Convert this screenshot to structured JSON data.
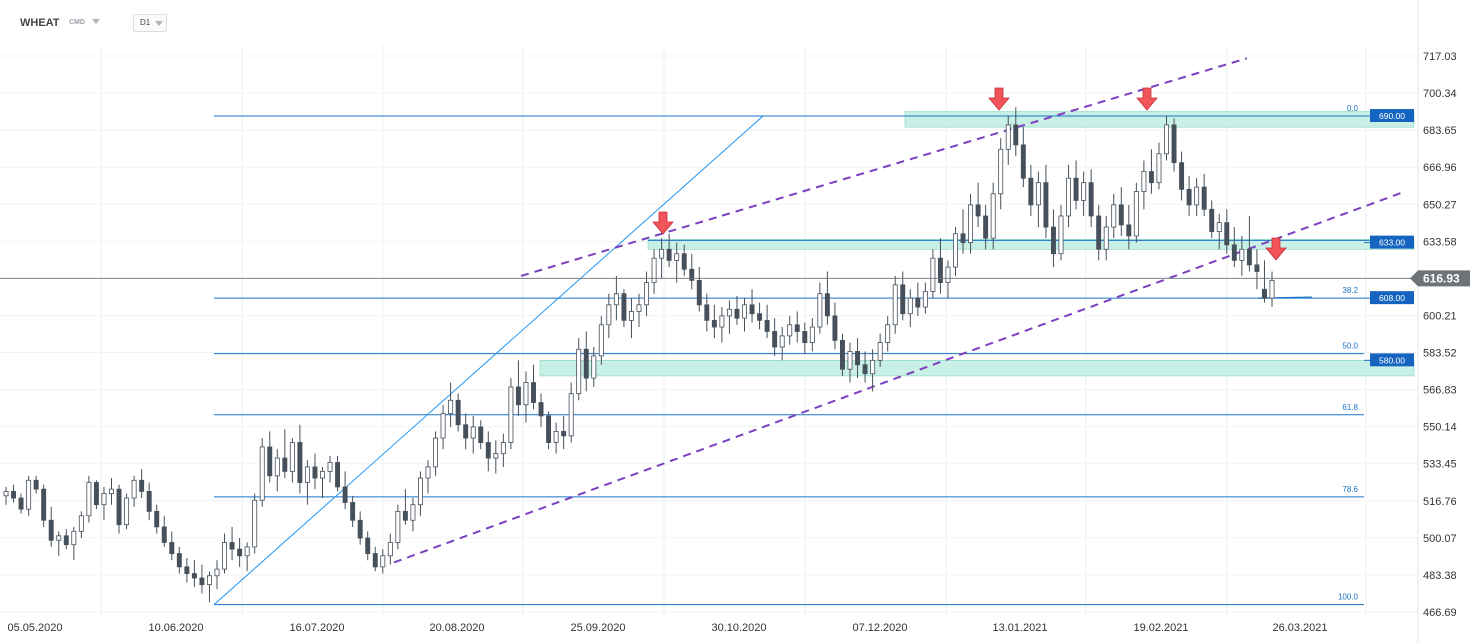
{
  "header": {
    "symbol": "WHEAT",
    "instrument_type": "CMD",
    "timeframe": "D1"
  },
  "chart_data": {
    "type": "candlestick",
    "x_ticks": [
      "05.05.2020",
      "10.06.2020",
      "16.07.2020",
      "20.08.2020",
      "25.09.2020",
      "30.10.2020",
      "07.12.2020",
      "13.01.2021",
      "19.02.2021",
      "26.03.2021"
    ],
    "y_ticks": [
      717.03,
      700.34,
      683.65,
      666.96,
      650.27,
      633.58,
      616.89,
      600.21,
      583.52,
      566.83,
      550.14,
      533.45,
      516.76,
      500.07,
      483.38,
      466.69
    ],
    "ylim": [
      466.69,
      717.03
    ],
    "current_price": "616.93",
    "price_levels": [
      {
        "label": "690.00",
        "value": 690.0
      },
      {
        "label": "633.00",
        "value": 633.0
      },
      {
        "label": "608.00",
        "value": 608.0
      },
      {
        "label": "580.00",
        "value": 580.0
      }
    ],
    "fibonacci": [
      {
        "label": "0.0",
        "value": 690.0
      },
      {
        "label": "38.2",
        "value": 608.0
      },
      {
        "label": "50.0",
        "value": 583.0
      },
      {
        "label": "61.8",
        "value": 555.5
      },
      {
        "label": "78.6",
        "value": 518.5
      },
      {
        "label": "100.0",
        "value": 470.0
      }
    ],
    "colors": {
      "bull": "#ffffff",
      "bear": "#46505a",
      "wick": "#46505a",
      "level_line": "#1a73c8",
      "label_bg": "#1565c0",
      "zone": "#c9f0e6",
      "channel": "#7b3fbf",
      "arrow": "#f2545b",
      "current": "#6d7378"
    },
    "candles": [
      [
        519,
        523,
        515,
        521
      ],
      [
        521,
        524,
        516,
        518
      ],
      [
        518,
        520,
        511,
        513
      ],
      [
        513,
        528,
        510,
        526
      ],
      [
        526,
        528,
        520,
        522
      ],
      [
        522,
        524,
        505,
        508
      ],
      [
        508,
        514,
        496,
        499
      ],
      [
        499,
        503,
        492,
        501
      ],
      [
        501,
        504,
        495,
        497
      ],
      [
        497,
        505,
        490,
        503
      ],
      [
        503,
        512,
        500,
        510
      ],
      [
        510,
        528,
        507,
        525
      ],
      [
        525,
        526,
        513,
        515
      ],
      [
        515,
        523,
        508,
        520
      ],
      [
        520,
        527,
        515,
        522
      ],
      [
        522,
        524,
        502,
        506
      ],
      [
        506,
        520,
        504,
        518
      ],
      [
        518,
        528,
        514,
        526
      ],
      [
        526,
        531,
        518,
        521
      ],
      [
        521,
        525,
        508,
        512
      ],
      [
        512,
        515,
        502,
        505
      ],
      [
        505,
        510,
        496,
        498
      ],
      [
        498,
        503,
        490,
        493
      ],
      [
        493,
        496,
        484,
        487
      ],
      [
        487,
        491,
        480,
        484
      ],
      [
        484,
        490,
        478,
        482
      ],
      [
        482,
        488,
        475,
        479
      ],
      [
        479,
        485,
        471,
        483
      ],
      [
        483,
        490,
        477,
        486
      ],
      [
        486,
        502,
        484,
        498
      ],
      [
        498,
        505,
        490,
        495
      ],
      [
        495,
        500,
        487,
        492
      ],
      [
        492,
        498,
        485,
        496
      ],
      [
        496,
        520,
        493,
        517
      ],
      [
        517,
        545,
        514,
        541
      ],
      [
        541,
        548,
        525,
        528
      ],
      [
        528,
        540,
        521,
        536
      ],
      [
        536,
        549,
        527,
        530
      ],
      [
        530,
        545,
        525,
        543
      ],
      [
        543,
        551,
        520,
        525
      ],
      [
        525,
        535,
        515,
        532
      ],
      [
        532,
        538,
        522,
        527
      ],
      [
        527,
        532,
        518,
        530
      ],
      [
        530,
        537,
        525,
        534
      ],
      [
        534,
        537,
        521,
        523
      ],
      [
        523,
        530,
        513,
        516
      ],
      [
        516,
        519,
        505,
        508
      ],
      [
        508,
        512,
        497,
        500
      ],
      [
        500,
        503,
        490,
        493
      ],
      [
        493,
        496,
        485,
        487
      ],
      [
        487,
        495,
        484,
        492
      ],
      [
        492,
        502,
        488,
        498
      ],
      [
        498,
        515,
        495,
        512
      ],
      [
        512,
        522,
        506,
        508
      ],
      [
        508,
        518,
        503,
        515
      ],
      [
        515,
        530,
        510,
        527
      ],
      [
        527,
        535,
        520,
        532
      ],
      [
        532,
        548,
        528,
        545
      ],
      [
        545,
        560,
        540,
        556
      ],
      [
        556,
        570,
        550,
        562
      ],
      [
        562,
        565,
        548,
        551
      ],
      [
        551,
        556,
        540,
        545
      ],
      [
        545,
        555,
        538,
        550
      ],
      [
        550,
        553,
        540,
        543
      ],
      [
        543,
        548,
        530,
        536
      ],
      [
        536,
        544,
        529,
        538
      ],
      [
        538,
        547,
        532,
        543
      ],
      [
        543,
        572,
        540,
        568
      ],
      [
        568,
        580,
        555,
        560
      ],
      [
        560,
        575,
        552,
        570
      ],
      [
        570,
        578,
        558,
        561
      ],
      [
        561,
        565,
        550,
        555
      ],
      [
        555,
        557,
        540,
        543
      ],
      [
        543,
        552,
        538,
        548
      ],
      [
        548,
        555,
        540,
        546
      ],
      [
        546,
        570,
        543,
        565
      ],
      [
        565,
        590,
        562,
        585
      ],
      [
        585,
        593,
        566,
        572
      ],
      [
        572,
        586,
        568,
        582
      ],
      [
        582,
        600,
        578,
        596
      ],
      [
        596,
        610,
        590,
        605
      ],
      [
        605,
        618,
        598,
        610
      ],
      [
        610,
        612,
        595,
        598
      ],
      [
        598,
        608,
        590,
        602
      ],
      [
        602,
        610,
        595,
        605
      ],
      [
        605,
        620,
        600,
        615
      ],
      [
        615,
        630,
        610,
        626
      ],
      [
        626,
        635,
        617,
        630
      ],
      [
        630,
        637,
        622,
        625
      ],
      [
        625,
        633,
        615,
        628
      ],
      [
        628,
        632,
        618,
        621
      ],
      [
        621,
        628,
        612,
        616
      ],
      [
        616,
        622,
        602,
        605
      ],
      [
        605,
        610,
        593,
        598
      ],
      [
        598,
        605,
        590,
        595
      ],
      [
        595,
        604,
        588,
        600
      ],
      [
        600,
        607,
        592,
        603
      ],
      [
        603,
        609,
        596,
        599
      ],
      [
        599,
        608,
        593,
        605
      ],
      [
        605,
        612,
        597,
        601
      ],
      [
        601,
        606,
        594,
        598
      ],
      [
        598,
        605,
        590,
        593
      ],
      [
        593,
        599,
        582,
        586
      ],
      [
        586,
        595,
        580,
        591
      ],
      [
        591,
        600,
        587,
        596
      ],
      [
        596,
        602,
        588,
        593
      ],
      [
        593,
        597,
        583,
        588
      ],
      [
        588,
        599,
        584,
        595
      ],
      [
        595,
        615,
        592,
        610
      ],
      [
        610,
        620,
        596,
        600
      ],
      [
        600,
        606,
        585,
        589
      ],
      [
        589,
        592,
        573,
        576
      ],
      [
        576,
        588,
        570,
        584
      ],
      [
        584,
        590,
        572,
        578
      ],
      [
        578,
        584,
        570,
        574
      ],
      [
        574,
        585,
        566,
        580
      ],
      [
        580,
        592,
        577,
        588
      ],
      [
        588,
        600,
        584,
        596
      ],
      [
        596,
        618,
        592,
        614
      ],
      [
        614,
        620,
        598,
        601
      ],
      [
        601,
        612,
        595,
        608
      ],
      [
        608,
        615,
        600,
        604
      ],
      [
        604,
        615,
        601,
        611
      ],
      [
        611,
        630,
        608,
        626
      ],
      [
        626,
        635,
        610,
        615
      ],
      [
        615,
        625,
        608,
        622
      ],
      [
        622,
        640,
        618,
        637
      ],
      [
        637,
        648,
        628,
        633
      ],
      [
        633,
        655,
        628,
        650
      ],
      [
        650,
        660,
        640,
        645
      ],
      [
        645,
        650,
        630,
        635
      ],
      [
        635,
        660,
        630,
        655
      ],
      [
        655,
        680,
        648,
        675
      ],
      [
        675,
        690,
        668,
        686
      ],
      [
        686,
        694,
        672,
        677
      ],
      [
        677,
        685,
        658,
        662
      ],
      [
        662,
        668,
        645,
        650
      ],
      [
        650,
        665,
        640,
        660
      ],
      [
        660,
        668,
        635,
        640
      ],
      [
        640,
        648,
        622,
        628
      ],
      [
        628,
        650,
        625,
        645
      ],
      [
        645,
        668,
        640,
        662
      ],
      [
        662,
        670,
        648,
        652
      ],
      [
        652,
        665,
        645,
        660
      ],
      [
        660,
        666,
        640,
        645
      ],
      [
        645,
        650,
        625,
        630
      ],
      [
        630,
        645,
        625,
        640
      ],
      [
        640,
        655,
        635,
        650
      ],
      [
        650,
        658,
        636,
        641
      ],
      [
        641,
        650,
        630,
        636
      ],
      [
        636,
        660,
        633,
        656
      ],
      [
        656,
        670,
        648,
        665
      ],
      [
        665,
        675,
        655,
        660
      ],
      [
        660,
        678,
        657,
        673
      ],
      [
        673,
        690,
        670,
        686
      ],
      [
        686,
        689,
        665,
        669
      ],
      [
        669,
        674,
        652,
        657
      ],
      [
        657,
        663,
        645,
        650
      ],
      [
        650,
        662,
        645,
        658
      ],
      [
        658,
        664,
        645,
        648
      ],
      [
        648,
        652,
        635,
        638
      ],
      [
        638,
        646,
        630,
        642
      ],
      [
        642,
        648,
        628,
        632
      ],
      [
        632,
        640,
        622,
        625
      ],
      [
        625,
        636,
        618,
        630
      ],
      [
        630,
        645,
        620,
        623
      ],
      [
        623,
        630,
        612,
        620
      ],
      [
        612,
        625,
        606,
        608
      ],
      [
        608,
        620,
        604,
        616
      ]
    ]
  }
}
